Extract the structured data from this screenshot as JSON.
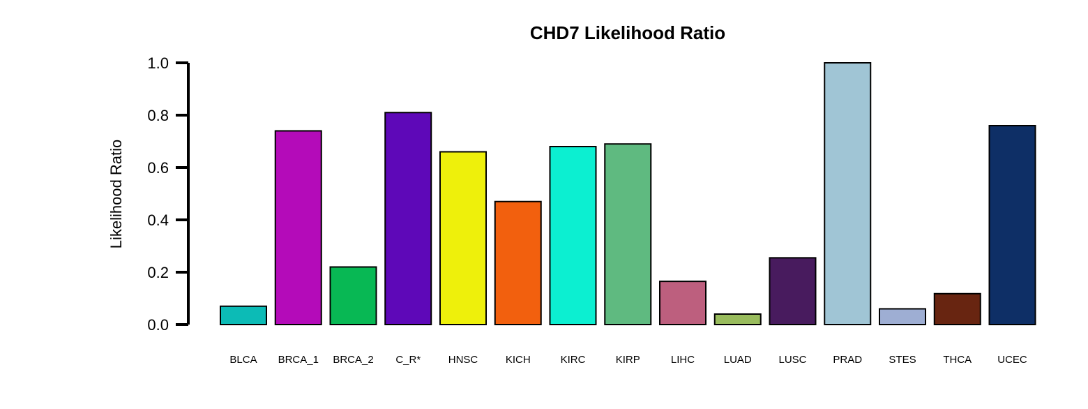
{
  "chart_data": {
    "type": "bar",
    "title": "CHD7 Likelihood Ratio",
    "xlabel": "",
    "ylabel": "Likelihood Ratio",
    "ylim": [
      0,
      1.0
    ],
    "yticks": [
      "0.0",
      "0.2",
      "0.4",
      "0.6",
      "0.8",
      "1.0"
    ],
    "grid": false,
    "categories": [
      "BLCA",
      "BRCA_1",
      "BRCA_2",
      "C_R*",
      "HNSC",
      "KICH",
      "KIRC",
      "KIRP",
      "LIHC",
      "LUAD",
      "LUSC",
      "PRAD",
      "STES",
      "THCA",
      "UCEC"
    ],
    "values": [
      0.07,
      0.74,
      0.22,
      0.81,
      0.66,
      0.47,
      0.68,
      0.69,
      0.165,
      0.04,
      0.255,
      1.0,
      0.06,
      0.118,
      0.76
    ],
    "colors": [
      "#0cbbb6",
      "#b40bb9",
      "#08b854",
      "#5e08b8",
      "#eef00b",
      "#f2600e",
      "#0cefd1",
      "#5fba80",
      "#bd5f7e",
      "#99bc5d",
      "#481b5e",
      "#a0c5d5",
      "#9eaed3",
      "#682511",
      "#0e2f66"
    ]
  }
}
